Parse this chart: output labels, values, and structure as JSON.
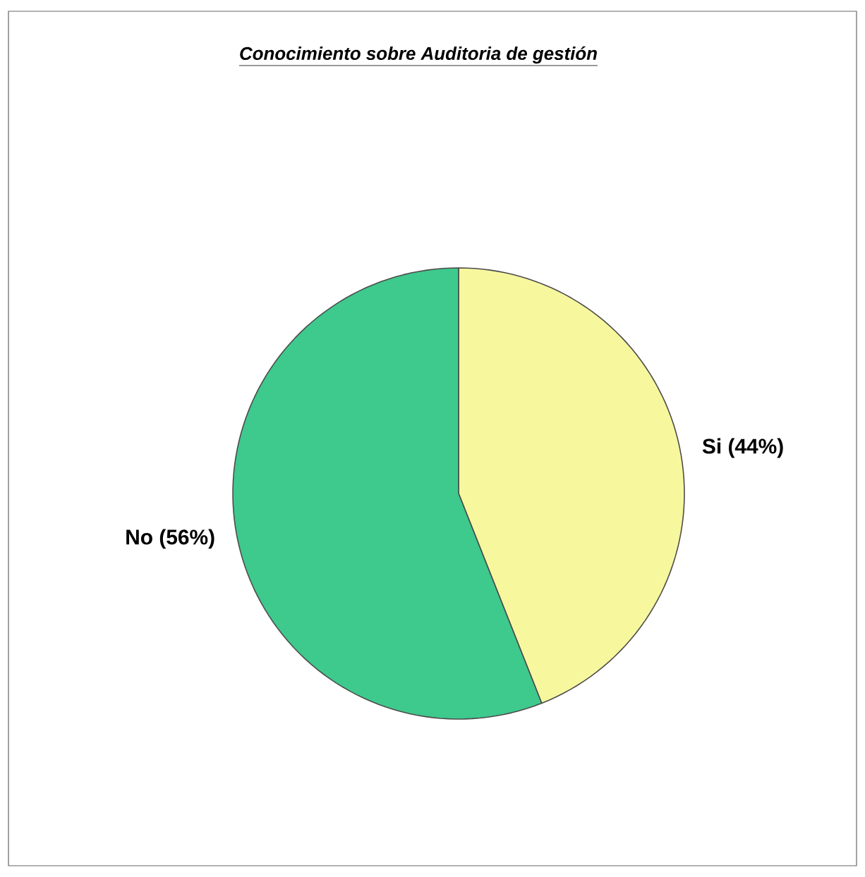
{
  "chart_data": {
    "type": "pie",
    "title": "Conocimiento sobre Auditoria de gestión",
    "categories": [
      "Si",
      "No"
    ],
    "values": [
      44,
      56
    ],
    "value_labels": [
      "(44%)",
      "(56%)"
    ],
    "colors": [
      "#f7f79e",
      "#3ec98d"
    ]
  }
}
